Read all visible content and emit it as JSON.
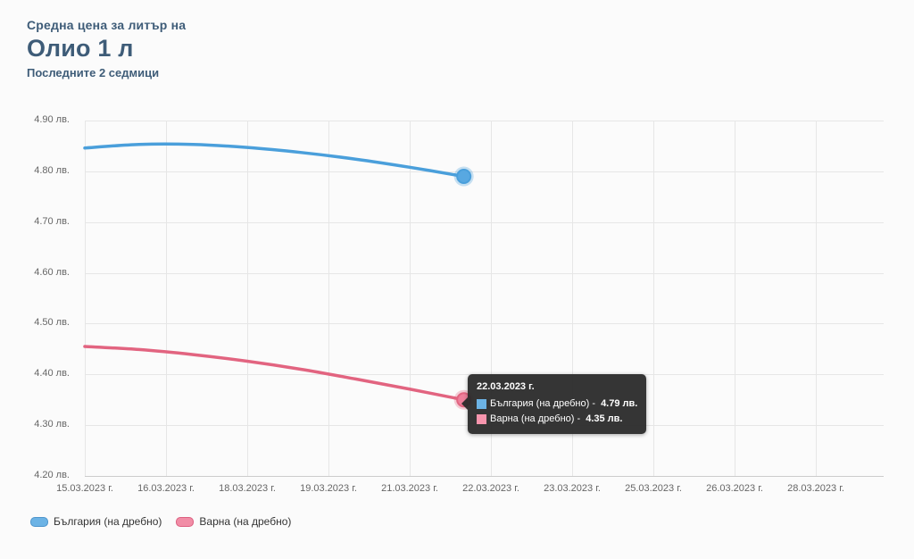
{
  "header": {
    "kicker": "Средна цена за литър на",
    "title": "Олио 1 л",
    "subtitle": "Последните 2 седмици"
  },
  "colors": {
    "page_bg": "#fbfbfb",
    "title_text": "#3e5c78",
    "axis_text": "#666666",
    "grid": "#e6e6e6",
    "axis_line": "#cccccc",
    "tooltip_bg": "#2a2a2a",
    "bulgaria_blue": "#4a9fdb",
    "varna_pink": "#e26480"
  },
  "chart_data": {
    "type": "line",
    "title": "Олио 1 л",
    "subtitle": "Последните 2 седмици",
    "grid": true,
    "legend_position": "bottom-left",
    "x_axis": {
      "tick_labels": [
        "15.03.2023 г.",
        "16.03.2023 г.",
        "18.03.2023 г.",
        "19.03.2023 г.",
        "21.03.2023 г.",
        "22.03.2023 г.",
        "23.03.2023 г.",
        "25.03.2023 г.",
        "26.03.2023 г.",
        "28.03.2023 г."
      ],
      "tick_interval_days": 1.5
    },
    "y_axis": {
      "min": 4.2,
      "max": 4.9,
      "unit": "лв.",
      "ticks": [
        {
          "value": 4.9,
          "label": "4.90 лв."
        },
        {
          "value": 4.8,
          "label": "4.80 лв."
        },
        {
          "value": 4.7,
          "label": "4.70 лв."
        },
        {
          "value": 4.6,
          "label": "4.60 лв."
        },
        {
          "value": 4.5,
          "label": "4.50 лв."
        },
        {
          "value": 4.4,
          "label": "4.40 лв."
        },
        {
          "value": 4.3,
          "label": "4.30 лв."
        },
        {
          "value": 4.2,
          "label": "4.20 лв."
        }
      ]
    },
    "series": [
      {
        "id": "bulgaria",
        "name": "България (на дребно)",
        "color": "#4a9fdb",
        "marker_fill": "#58a8e1",
        "dates": [
          "15.03.2023 г.",
          "16.03.2023 г.",
          "17.03.2023 г.",
          "18.03.2023 г.",
          "19.03.2023 г.",
          "20.03.2023 г.",
          "21.03.2023 г.",
          "22.03.2023 г."
        ],
        "values": [
          4.846,
          4.853,
          4.853,
          4.847,
          4.837,
          4.824,
          4.808,
          4.79
        ],
        "last_value_label": "4.79 лв."
      },
      {
        "id": "varna",
        "name": "Варна (на дребно)",
        "color": "#e26480",
        "marker_fill": "#ee7f9b",
        "dates": [
          "15.03.2023 г.",
          "16.03.2023 г.",
          "17.03.2023 г.",
          "18.03.2023 г.",
          "19.03.2023 г.",
          "20.03.2023 г.",
          "21.03.2023 г.",
          "22.03.2023 г."
        ],
        "values": [
          4.455,
          4.449,
          4.439,
          4.426,
          4.41,
          4.391,
          4.371,
          4.35
        ],
        "last_value_label": "4.35 лв."
      }
    ]
  },
  "tooltip": {
    "title": "22.03.2023 г.",
    "rows": [
      {
        "id": "bulgaria",
        "swatch": "#6cb3e5",
        "label": "България (на дребно)",
        "separator": " - ",
        "value": "4.79 лв."
      },
      {
        "id": "varna",
        "swatch": "#f795ad",
        "label": "Варна (на дребно)",
        "separator": " - ",
        "value": "4.35 лв."
      }
    ]
  },
  "legend": {
    "items": [
      {
        "id": "bulgaria",
        "label": "България (на дребно)",
        "fill": "#6cb3e5",
        "border": "#4e95cc"
      },
      {
        "id": "varna",
        "label": "Варна (на дребно)",
        "fill": "#f18da6",
        "border": "#dc5f80"
      }
    ]
  }
}
